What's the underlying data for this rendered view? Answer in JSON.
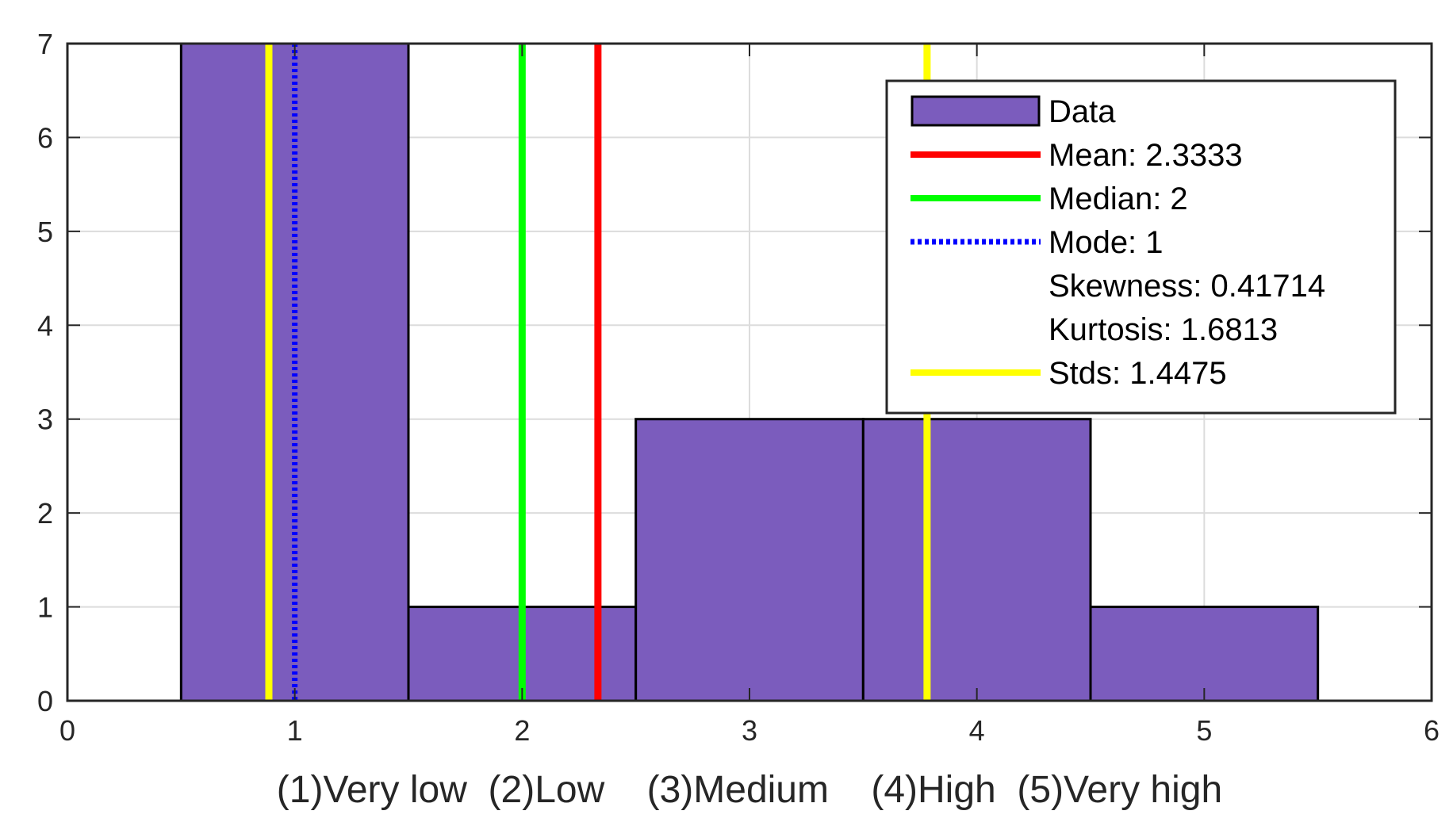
{
  "chart_data": {
    "type": "bar",
    "title": "",
    "xlabel": "(1)Very low  (2)Low    (3)Medium    (4)High  (5)Very high",
    "ylabel": "",
    "xlim": [
      0,
      6
    ],
    "ylim": [
      0,
      7
    ],
    "xticks": [
      "0",
      "1",
      "2",
      "3",
      "4",
      "5",
      "6"
    ],
    "yticks": [
      "0",
      "1",
      "2",
      "3",
      "4",
      "5",
      "6",
      "7"
    ],
    "grid": true,
    "bins": [
      {
        "center": 1,
        "value": 7
      },
      {
        "center": 2,
        "value": 1
      },
      {
        "center": 3,
        "value": 3
      },
      {
        "center": 4,
        "value": 3
      },
      {
        "center": 5,
        "value": 1
      }
    ],
    "bin_width": 1,
    "lines": [
      {
        "name": "mean",
        "x": 2.3333,
        "color": "#ff0000",
        "style": "solid"
      },
      {
        "name": "median",
        "x": 2,
        "color": "#00ff00",
        "style": "solid"
      },
      {
        "name": "mode",
        "x": 1,
        "color": "#0000ff",
        "style": "dotted"
      },
      {
        "name": "std-low",
        "x": 0.886,
        "color": "#ffff00",
        "style": "solid"
      },
      {
        "name": "std-high",
        "x": 3.781,
        "color": "#ffff00",
        "style": "solid"
      }
    ],
    "bar_color": "#7b5cbd",
    "legend": {
      "position": "top-right",
      "entries": [
        {
          "label": "Data",
          "kind": "patch",
          "color": "#7b5cbd"
        },
        {
          "label": "Mean: 2.3333",
          "kind": "line",
          "color": "#ff0000"
        },
        {
          "label": "Median: 2",
          "kind": "line",
          "color": "#00ff00"
        },
        {
          "label": "Mode: 1",
          "kind": "dotted",
          "color": "#0000ff"
        },
        {
          "label": "Skewness: 0.41714",
          "kind": "none",
          "color": ""
        },
        {
          "label": "Kurtosis: 1.6813",
          "kind": "none",
          "color": ""
        },
        {
          "label": "Stds: 1.4475",
          "kind": "line",
          "color": "#ffff00"
        }
      ]
    }
  }
}
